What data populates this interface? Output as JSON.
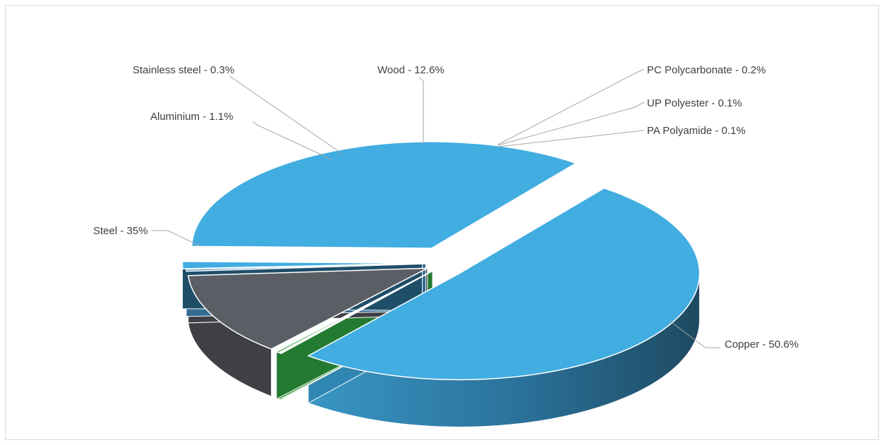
{
  "chart_data": {
    "type": "pie",
    "style": "3d-exploded",
    "title": "",
    "slices": [
      {
        "key": "copper",
        "label": "Copper - 50.6%",
        "name": "Copper",
        "value": 50.6,
        "color": "#41ADE1",
        "side_color": "#2F86B0"
      },
      {
        "key": "pa",
        "label": "PA Polyamide - 0.1%",
        "name": "PA Polyamide",
        "value": 0.1,
        "color": "#7ED957",
        "side_color": "#5AA83C"
      },
      {
        "key": "up",
        "label": "UP Polyester - 0.1%",
        "name": "UP Polyester",
        "value": 0.1,
        "color": "#5FC56A",
        "side_color": "#3E9A47"
      },
      {
        "key": "pc",
        "label": "PC Polycarbonate - 0.2%",
        "name": "PC Polycarbonate",
        "value": 0.2,
        "color": "#33A044",
        "side_color": "#237A31"
      },
      {
        "key": "wood",
        "label": "Wood - 12.6%",
        "name": "Wood",
        "value": 12.6,
        "color": "#5B5E64",
        "side_color": "#3E4045"
      },
      {
        "key": "stainless",
        "label": "Stainless steel - 0.3%",
        "name": "Stainless steel",
        "value": 0.3,
        "color": "#4A90C2",
        "side_color": "#336A92"
      },
      {
        "key": "aluminium",
        "label": "Aluminium - 1.1%",
        "name": "Aluminium",
        "value": 1.1,
        "color": "#41ADE1",
        "side_color": "#1F4E69"
      },
      {
        "key": "steel",
        "label": "Steel - 35%",
        "name": "Steel",
        "value": 35,
        "color": "#41ADE1",
        "side_color": "#2F86B0"
      }
    ],
    "legend": "none",
    "data_labels": "outside-with-leader-lines"
  }
}
